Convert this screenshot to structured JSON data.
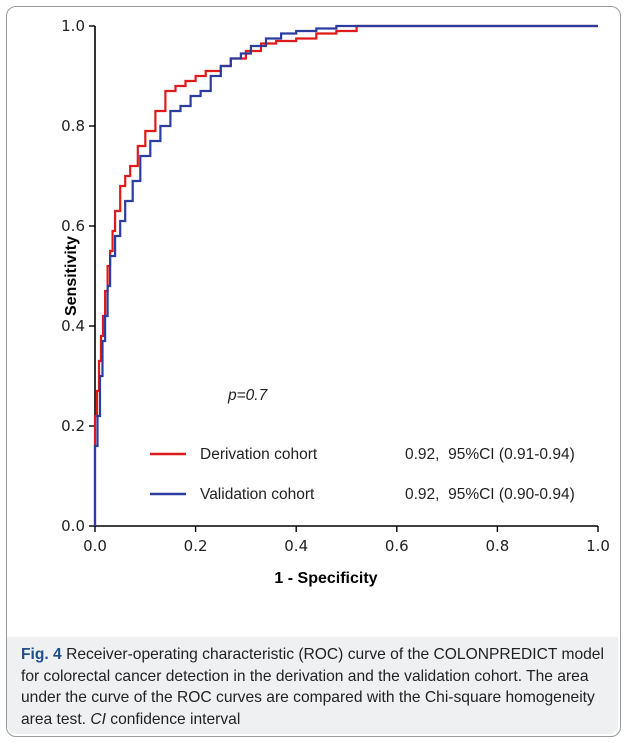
{
  "chart_data": {
    "type": "line",
    "title": "",
    "xlabel": "1 - Specificity",
    "ylabel": "Sensitivity",
    "xlim": [
      0.0,
      1.0
    ],
    "ylim": [
      0.0,
      1.0
    ],
    "xticks": [
      "0.0",
      "0.2",
      "0.4",
      "0.6",
      "0.8",
      "1.0"
    ],
    "yticks": [
      "0.0",
      "0.2",
      "0.4",
      "0.6",
      "0.8",
      "1.0"
    ],
    "grid": false,
    "annotation": "p=0.7",
    "legend_position": "bottom-right",
    "series": [
      {
        "name": "Derivation cohort",
        "stat": "0.92,  95%CI (0.91-0.94)",
        "color": "#e0191b",
        "points": [
          [
            0,
            0
          ],
          [
            0,
            0.19
          ],
          [
            0.004,
            0.22
          ],
          [
            0.008,
            0.27
          ],
          [
            0.012,
            0.33
          ],
          [
            0.016,
            0.38
          ],
          [
            0.02,
            0.42
          ],
          [
            0.025,
            0.47
          ],
          [
            0.03,
            0.52
          ],
          [
            0.035,
            0.55
          ],
          [
            0.04,
            0.59
          ],
          [
            0.05,
            0.63
          ],
          [
            0.06,
            0.68
          ],
          [
            0.07,
            0.7
          ],
          [
            0.085,
            0.72
          ],
          [
            0.1,
            0.76
          ],
          [
            0.12,
            0.79
          ],
          [
            0.14,
            0.83
          ],
          [
            0.16,
            0.87
          ],
          [
            0.18,
            0.88
          ],
          [
            0.2,
            0.89
          ],
          [
            0.22,
            0.9
          ],
          [
            0.25,
            0.91
          ],
          [
            0.27,
            0.92
          ],
          [
            0.3,
            0.935
          ],
          [
            0.33,
            0.95
          ],
          [
            0.36,
            0.965
          ],
          [
            0.4,
            0.97
          ],
          [
            0.44,
            0.975
          ],
          [
            0.48,
            0.985
          ],
          [
            0.52,
            0.99
          ],
          [
            0.55,
            1.0
          ],
          [
            0.7,
            1.0
          ],
          [
            1.0,
            1.0
          ]
        ]
      },
      {
        "name": "Validation cohort",
        "stat": "0.92,  95%CI (0.90-0.94)",
        "color": "#2b3d9f",
        "points": [
          [
            0,
            0
          ],
          [
            0,
            0.1
          ],
          [
            0.005,
            0.16
          ],
          [
            0.01,
            0.22
          ],
          [
            0.015,
            0.3
          ],
          [
            0.02,
            0.37
          ],
          [
            0.025,
            0.42
          ],
          [
            0.03,
            0.48
          ],
          [
            0.04,
            0.54
          ],
          [
            0.05,
            0.58
          ],
          [
            0.06,
            0.61
          ],
          [
            0.075,
            0.65
          ],
          [
            0.09,
            0.69
          ],
          [
            0.11,
            0.74
          ],
          [
            0.13,
            0.77
          ],
          [
            0.15,
            0.8
          ],
          [
            0.17,
            0.83
          ],
          [
            0.19,
            0.84
          ],
          [
            0.21,
            0.86
          ],
          [
            0.23,
            0.87
          ],
          [
            0.25,
            0.9
          ],
          [
            0.27,
            0.92
          ],
          [
            0.29,
            0.935
          ],
          [
            0.31,
            0.945
          ],
          [
            0.34,
            0.96
          ],
          [
            0.37,
            0.975
          ],
          [
            0.4,
            0.985
          ],
          [
            0.44,
            0.99
          ],
          [
            0.48,
            0.995
          ],
          [
            0.52,
            1.0
          ],
          [
            0.7,
            1.0
          ],
          [
            1.0,
            1.0
          ]
        ]
      }
    ]
  },
  "caption": {
    "label": "Fig. 4",
    "text_before_abbr": " Receiver-operating characteristic (ROC) curve of the COLONPREDICT model for colorectal cancer detection in the derivation and the validation cohort. The area under the curve of the ROC curves are compared with the Chi-square homogeneity area test. ",
    "abbr": "CI",
    "text_after_abbr": " confidence interval"
  }
}
